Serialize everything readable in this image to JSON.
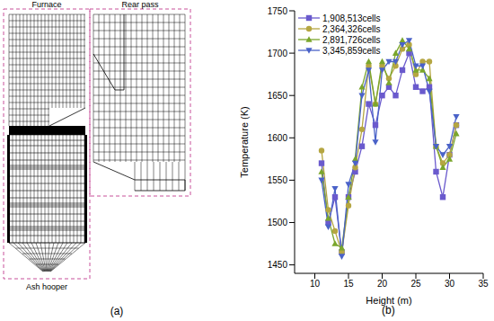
{
  "diagram": {
    "labels": {
      "furnace": "Furnace",
      "rear_pass": "Rear pass",
      "ash_hopper": "Ash hooper"
    },
    "caption": "(a)"
  },
  "chart_data": {
    "type": "line",
    "caption": "(b)",
    "x_label": "Height (m)",
    "y_label": "Temperature (K)",
    "x": [
      11,
      12,
      13,
      14,
      15,
      16,
      17,
      18,
      19,
      20,
      21,
      22,
      23,
      24,
      25,
      26,
      27,
      28,
      29,
      30,
      31
    ],
    "xlim": [
      7,
      35
    ],
    "xticks": [
      10,
      15,
      20,
      25,
      30,
      35
    ],
    "ylim": [
      1440,
      1750
    ],
    "yticks": [
      1450,
      1500,
      1550,
      1600,
      1650,
      1700,
      1750
    ],
    "grid": false,
    "legend": "upper left",
    "series": [
      {
        "name": "1,908,513cells",
        "color": "#6a5acd",
        "marker": "square",
        "values": [
          1570,
          1500,
          1530,
          1465,
          1530,
          1560,
          1590,
          1640,
          1615,
          1650,
          1660,
          1650,
          1680,
          1700,
          1660,
          1655,
          1660,
          1560,
          1530,
          1580,
          1615
        ]
      },
      {
        "name": "2,364,326cells",
        "color": "#b5a642",
        "marker": "circle",
        "values": [
          1585,
          1515,
          1490,
          1465,
          1520,
          1565,
          1610,
          1685,
          1640,
          1685,
          1670,
          1685,
          1705,
          1710,
          1675,
          1690,
          1690,
          1590,
          1570,
          1580,
          1615
        ]
      },
      {
        "name": "2,891,726cells",
        "color": "#7aa62c",
        "marker": "triangle",
        "values": [
          1560,
          1505,
          1475,
          1470,
          1530,
          1575,
          1660,
          1690,
          1640,
          1690,
          1665,
          1700,
          1715,
          1705,
          1680,
          1680,
          1670,
          1590,
          1565,
          1575,
          1605
        ]
      },
      {
        "name": "3,345,859cells",
        "color": "#4a62c8",
        "marker": "triangle-down",
        "values": [
          1550,
          1495,
          1540,
          1460,
          1545,
          1570,
          1650,
          1680,
          1595,
          1680,
          1690,
          1690,
          1710,
          1715,
          1685,
          1685,
          1655,
          1590,
          1580,
          1590,
          1625
        ]
      }
    ]
  }
}
